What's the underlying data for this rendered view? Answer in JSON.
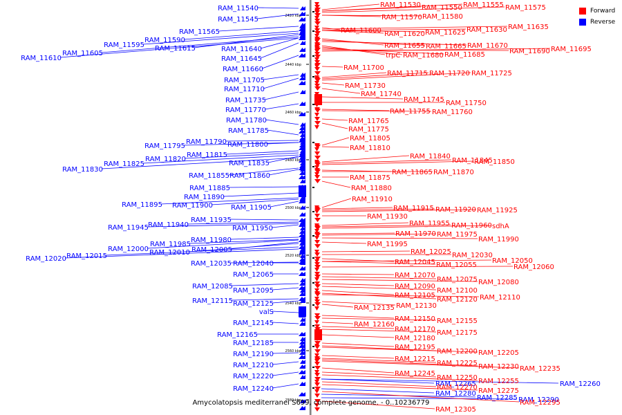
{
  "colors": {
    "forward": "#ff0000",
    "reverse": "#0000ff",
    "backbone": "#888888"
  },
  "legend": [
    {
      "label": "Forward",
      "color": "#ff0000"
    },
    {
      "label": "Reverse",
      "color": "#0000ff"
    }
  ],
  "caption": "Amycolatopsis mediterranei S699, complete genome. - 0..10236779",
  "scale_labels": [
    "2420 kbp",
    "2440 kbp",
    "2460 kbp",
    "2480 kbp",
    "2500 kbp",
    "2520 kbp",
    "2540 kbp",
    "2560 kbp",
    "2580 kbp"
  ],
  "reverse_genes": [
    "RAM_11540",
    "RAM_11545",
    "RAM_11565",
    "RAM_11590",
    "RAM_11595",
    "RAM_11615",
    "RAM_11605",
    "RAM_11610",
    "RAM_11640",
    "RAM_11645",
    "RAM_11660",
    "RAM_11705",
    "RAM_11710",
    "RAM_11735",
    "RAM_11770",
    "RAM_11780",
    "RAM_11785",
    "RAM_11790",
    "RAM_11795",
    "RAM_11800",
    "RAM_11815",
    "RAM_11820",
    "RAM_11825",
    "RAM_11835",
    "RAM_11830",
    "RAM_11855",
    "RAM_11860",
    "RAM_11885",
    "RAM_11890",
    "RAM_11895",
    "RAM_11900",
    "RAM_11905",
    "RAM_11935",
    "RAM_11940",
    "RAM_11945",
    "RAM_11950",
    "RAM_11980",
    "RAM_11985",
    "RAM_12005",
    "RAM_12000",
    "RAM_12010",
    "RAM_12015",
    "RAM_12020",
    "RAM_12035",
    "RAM_12040",
    "RAM_12065",
    "RAM_12085",
    "RAM_12095",
    "RAM_12115",
    "RAM_12125",
    "valS",
    "RAM_12145",
    "RAM_12165",
    "RAM_12185",
    "RAM_12190",
    "RAM_12210",
    "RAM_12220",
    "RAM_12240",
    "RAM_12265",
    "RAM_12280",
    "RAM_12285",
    "RAM_12260",
    "RAM_12290"
  ],
  "forward_genes": [
    "RAM_11530",
    "RAM_11550",
    "RAM_11555",
    "RAM_11575",
    "RAM_11570",
    "RAM_11580",
    "RAM_11600",
    "RAM_11620",
    "RAM_11625",
    "RAM_11630",
    "RAM_11635",
    "RAM_11655",
    "RAM_11665",
    "RAM_11670",
    "trpC",
    "RAM_11680",
    "RAM_11685",
    "RAM_11690",
    "RAM_11695",
    "RAM_11700",
    "RAM_11715",
    "RAM_11720",
    "RAM_11725",
    "RAM_11730",
    "RAM_11740",
    "RAM_11745",
    "RAM_11750",
    "RAM_11755",
    "RAM_11760",
    "RAM_11765",
    "RAM_11775",
    "RAM_11805",
    "RAM_11810",
    "RAM_11840",
    "RAM_11845",
    "RAM_11850",
    "RAM_11865",
    "RAM_11870",
    "RAM_11875",
    "RAM_11880",
    "RAM_11910",
    "RAM_11915",
    "RAM_11920",
    "RAM_11925",
    "RAM_11930",
    "RAM_11955",
    "RAM_11960",
    "sdhA",
    "RAM_11970",
    "RAM_11975",
    "RAM_11990",
    "RAM_11995",
    "RAM_12025",
    "RAM_12030",
    "RAM_12045",
    "RAM_12055",
    "RAM_12050",
    "RAM_12060",
    "RAM_12070",
    "RAM_12075",
    "RAM_12080",
    "RAM_12090",
    "RAM_12100",
    "RAM_12105",
    "RAM_12120",
    "RAM_12110",
    "RAM_12135",
    "RAM_12130",
    "RAM_12150",
    "RAM_12155",
    "RAM_12160",
    "RAM_12170",
    "RAM_12175",
    "RAM_12180",
    "RAM_12195",
    "RAM_12200",
    "RAM_12205",
    "RAM_12215",
    "RAM_12225",
    "RAM_12230",
    "RAM_12235",
    "RAM_12245",
    "RAM_12250",
    "RAM_12255",
    "RAM_12270",
    "RAM_12275",
    "RAM_12295",
    "RAM_12305"
  ]
}
